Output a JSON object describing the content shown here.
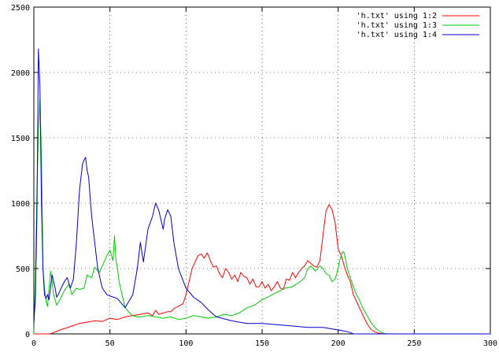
{
  "chart_data": {
    "type": "line",
    "title": "",
    "xlabel": "",
    "ylabel": "",
    "xlim": [
      0,
      300
    ],
    "ylim": [
      0,
      2500
    ],
    "xticks": [
      0,
      50,
      100,
      150,
      200,
      250,
      300
    ],
    "yticks": [
      0,
      500,
      1000,
      1500,
      2000,
      2500
    ],
    "grid": true,
    "legend_position": "top-right",
    "series": [
      {
        "name": "'h.txt' using 1:2",
        "color": "#ff0000",
        "x": [
          0,
          10,
          12,
          14,
          16,
          20,
          25,
          30,
          35,
          40,
          45,
          50,
          55,
          60,
          65,
          70,
          75,
          78,
          80,
          82,
          85,
          88,
          90,
          93,
          95,
          98,
          100,
          102,
          104,
          106,
          108,
          110,
          112,
          114,
          116,
          118,
          120,
          122,
          124,
          126,
          128,
          130,
          132,
          134,
          136,
          138,
          140,
          142,
          144,
          146,
          148,
          150,
          152,
          154,
          156,
          158,
          160,
          162,
          164,
          166,
          168,
          170,
          172,
          174,
          176,
          178,
          180,
          182,
          184,
          186,
          188,
          190,
          192,
          194,
          196,
          198,
          200,
          202,
          204,
          206,
          208,
          210,
          212,
          214,
          216,
          218,
          220,
          222,
          224,
          226,
          228,
          230,
          250,
          300
        ],
        "y": [
          0,
          0,
          5,
          15,
          25,
          40,
          60,
          80,
          90,
          100,
          95,
          120,
          110,
          130,
          140,
          150,
          160,
          140,
          180,
          150,
          160,
          170,
          170,
          200,
          210,
          230,
          300,
          400,
          500,
          550,
          600,
          610,
          580,
          620,
          560,
          510,
          520,
          460,
          430,
          500,
          470,
          420,
          450,
          400,
          470,
          440,
          430,
          380,
          420,
          360,
          360,
          400,
          350,
          380,
          330,
          360,
          400,
          350,
          340,
          420,
          410,
          470,
          430,
          470,
          500,
          520,
          560,
          540,
          520,
          510,
          560,
          750,
          940,
          990,
          950,
          850,
          650,
          600,
          520,
          450,
          400,
          300,
          250,
          200,
          150,
          100,
          60,
          30,
          15,
          8,
          3,
          0,
          0,
          0
        ]
      },
      {
        "name": "'h.txt' using 1:3",
        "color": "#00cc00",
        "x": [
          0,
          1,
          2,
          3,
          4,
          5,
          6,
          7,
          8,
          9,
          10,
          11,
          12,
          13,
          15,
          18,
          20,
          23,
          25,
          28,
          30,
          33,
          35,
          38,
          40,
          43,
          45,
          48,
          50,
          52,
          53,
          54,
          55,
          56,
          58,
          60,
          63,
          65,
          68,
          70,
          75,
          80,
          85,
          90,
          95,
          100,
          105,
          110,
          115,
          120,
          125,
          130,
          135,
          140,
          145,
          150,
          155,
          160,
          165,
          170,
          175,
          178,
          180,
          182,
          185,
          188,
          190,
          192,
          194,
          196,
          198,
          200,
          201,
          202,
          203,
          204,
          205,
          206,
          208,
          210,
          212,
          214,
          216,
          218,
          220,
          222,
          224,
          226,
          228,
          230,
          232,
          250,
          300
        ],
        "y": [
          0,
          400,
          1100,
          1550,
          1800,
          1350,
          500,
          350,
          250,
          210,
          350,
          480,
          400,
          300,
          220,
          280,
          330,
          380,
          300,
          350,
          340,
          350,
          450,
          430,
          510,
          470,
          520,
          600,
          640,
          560,
          750,
          560,
          500,
          400,
          300,
          200,
          160,
          140,
          130,
          130,
          140,
          130,
          120,
          130,
          110,
          120,
          140,
          130,
          120,
          130,
          150,
          140,
          160,
          200,
          220,
          260,
          290,
          320,
          350,
          360,
          400,
          430,
          500,
          520,
          480,
          520,
          500,
          460,
          450,
          400,
          420,
          500,
          560,
          600,
          630,
          620,
          560,
          500,
          430,
          360,
          300,
          260,
          200,
          160,
          120,
          80,
          50,
          30,
          15,
          5,
          0,
          0,
          0
        ]
      },
      {
        "name": "'h.txt' using 1:4",
        "color": "#0000cc",
        "x": [
          0,
          1,
          2,
          3,
          4,
          5,
          6,
          7,
          8,
          9,
          10,
          12,
          14,
          15,
          16,
          18,
          20,
          22,
          24,
          26,
          28,
          30,
          32,
          33,
          34,
          35,
          36,
          37,
          38,
          40,
          42,
          45,
          48,
          50,
          55,
          60,
          65,
          68,
          70,
          72,
          75,
          78,
          80,
          82,
          84,
          85,
          86,
          88,
          90,
          92,
          95,
          100,
          105,
          110,
          115,
          120,
          130,
          140,
          150,
          160,
          170,
          180,
          190,
          200,
          205,
          208,
          210,
          250,
          300
        ],
        "y": [
          100,
          250,
          900,
          2180,
          1900,
          1000,
          500,
          300,
          270,
          300,
          260,
          450,
          350,
          280,
          300,
          350,
          400,
          430,
          350,
          420,
          700,
          1100,
          1300,
          1330,
          1350,
          1250,
          1200,
          1050,
          900,
          700,
          500,
          350,
          300,
          290,
          270,
          200,
          300,
          500,
          700,
          550,
          800,
          900,
          1000,
          950,
          850,
          800,
          880,
          950,
          900,
          700,
          500,
          350,
          280,
          240,
          180,
          130,
          100,
          80,
          80,
          70,
          60,
          50,
          50,
          30,
          20,
          10,
          0,
          0,
          0
        ]
      }
    ]
  }
}
